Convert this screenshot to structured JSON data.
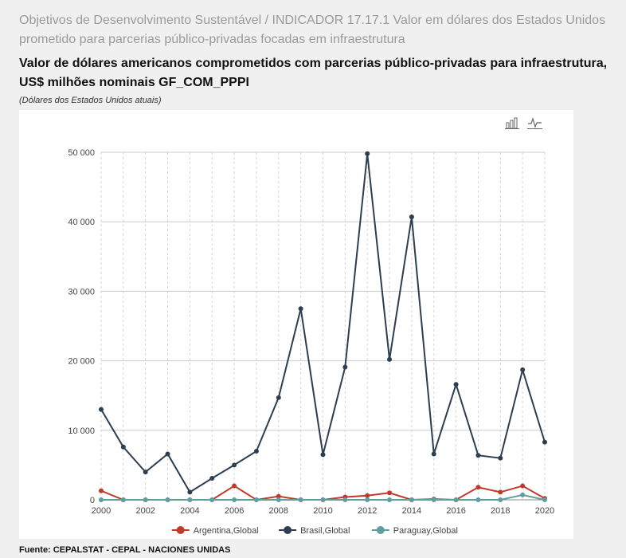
{
  "page": {
    "supertitle": "Objetivos de Desenvolvimento Sustentável / INDICADOR 17.17.1 Valor em dólares dos Estados Unidos prometido para parcerias público-privadas focadas em infraestrutura",
    "title": "Valor de dólares americanos comprometidos com parcerias público-privadas para infraestrutura, US$ milhões nominais GF_COM_PPPI",
    "subtitle": "(Dólares dos Estados Unidos atuais)",
    "source": "Fuente: CEPALSTAT - CEPAL - NACIONES UNIDAS"
  },
  "toolbar": {
    "bar_icon": "bar-chart-icon",
    "line_icon": "line-chart-icon"
  },
  "chart_data": {
    "type": "line",
    "x": [
      2000,
      2001,
      2002,
      2003,
      2004,
      2005,
      2006,
      2007,
      2008,
      2009,
      2010,
      2011,
      2012,
      2013,
      2014,
      2015,
      2016,
      2017,
      2018,
      2019,
      2020
    ],
    "x_tick_labels": [
      "2000",
      "2002",
      "2004",
      "2006",
      "2008",
      "2010",
      "2012",
      "2014",
      "2016",
      "2018",
      "2020"
    ],
    "y_tick_labels": [
      "0",
      "10 000",
      "20 000",
      "30 000",
      "40 000",
      "50 000"
    ],
    "ylim": [
      0,
      50000
    ],
    "grid": true,
    "legend_position": "bottom",
    "series": [
      {
        "name": "Argentina,Global",
        "color": "#c0392b",
        "values": [
          1300,
          0,
          0,
          0,
          0,
          0,
          2000,
          0,
          500,
          0,
          0,
          400,
          600,
          1000,
          0,
          100,
          0,
          1800,
          1100,
          2000,
          200
        ]
      },
      {
        "name": "Brasil,Global",
        "color": "#2c3e50",
        "values": [
          13000,
          7600,
          4000,
          6600,
          1100,
          3100,
          5000,
          7000,
          14700,
          27500,
          6500,
          19100,
          49800,
          20200,
          40700,
          6600,
          16600,
          6400,
          6000,
          18700,
          8300
        ]
      },
      {
        "name": "Paraguay,Global",
        "color": "#5f9ea0",
        "values": [
          0,
          0,
          0,
          0,
          0,
          0,
          0,
          0,
          0,
          0,
          0,
          0,
          0,
          0,
          0,
          0,
          0,
          0,
          0,
          700,
          0
        ]
      }
    ]
  }
}
